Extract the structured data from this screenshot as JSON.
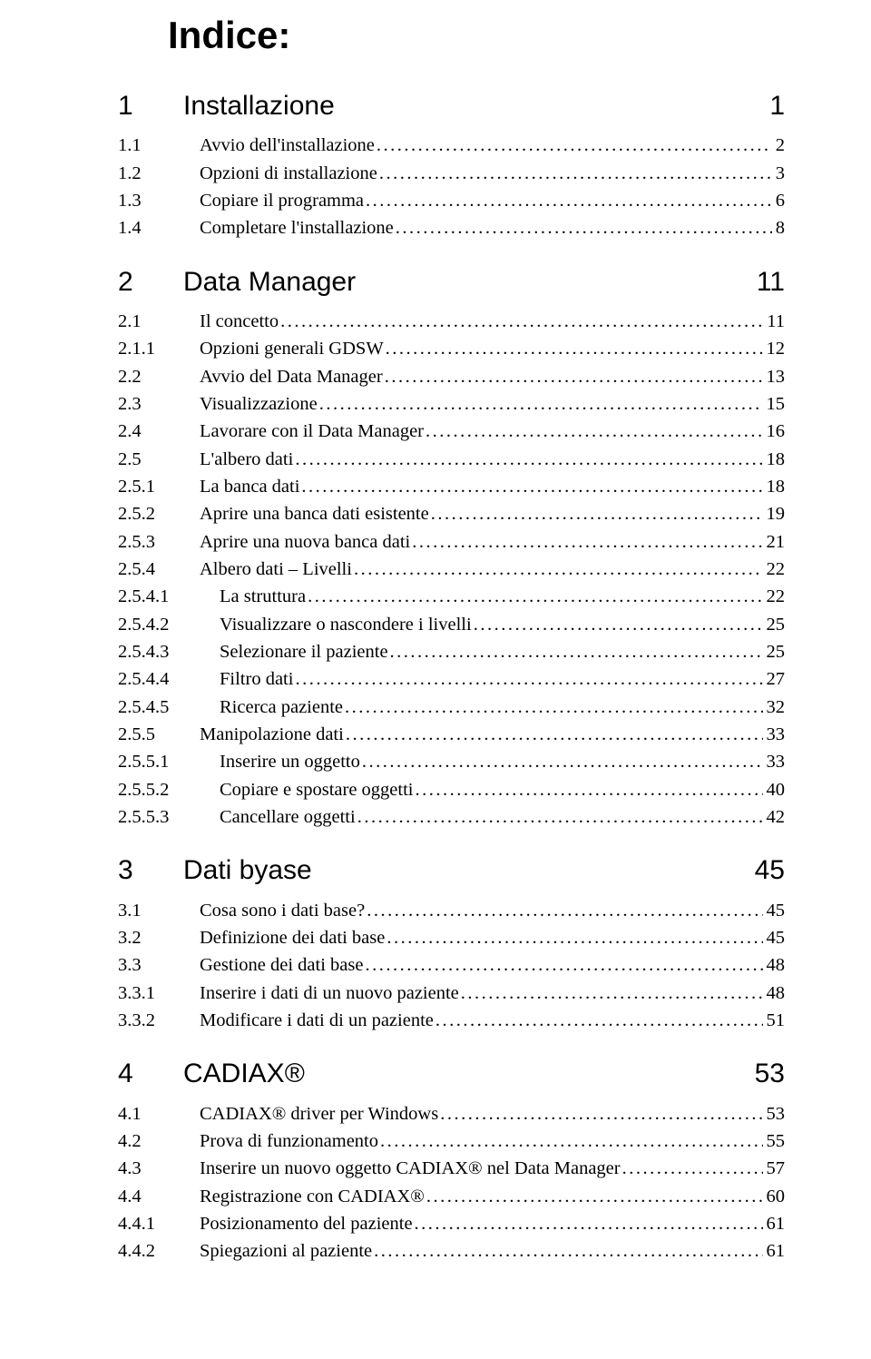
{
  "title": "Indice:",
  "sections": [
    {
      "chapter_num": "1",
      "chapter_title": "Installazione",
      "chapter_page": "1",
      "entries": [
        {
          "num": "1.1",
          "title": "Avvio dell'installazione",
          "page": "2",
          "level": 1
        },
        {
          "num": "1.2",
          "title": "Opzioni di installazione",
          "page": "3",
          "level": 1
        },
        {
          "num": "1.3",
          "title": "Copiare il programma",
          "page": "6",
          "level": 1
        },
        {
          "num": "1.4",
          "title": "Completare l'installazione",
          "page": "8",
          "level": 1
        }
      ]
    },
    {
      "chapter_num": "2",
      "chapter_title": "Data Manager",
      "chapter_page": "11",
      "entries": [
        {
          "num": "2.1",
          "title": "Il concetto",
          "page": "11",
          "level": 1
        },
        {
          "num": "2.1.1",
          "title": "Opzioni generali GDSW",
          "page": "12",
          "level": 1
        },
        {
          "num": "2.2",
          "title": "Avvio del Data Manager",
          "page": "13",
          "level": 1
        },
        {
          "num": "2.3",
          "title": "Visualizzazione",
          "page": "15",
          "level": 1
        },
        {
          "num": "2.4",
          "title": "Lavorare con il Data Manager",
          "page": "16",
          "level": 1
        },
        {
          "num": "2.5",
          "title": "L'albero dati",
          "page": "18",
          "level": 1
        },
        {
          "num": "2.5.1",
          "title": "La banca dati",
          "page": "18",
          "level": 1
        },
        {
          "num": "2.5.2",
          "title": "Aprire una banca dati esistente",
          "page": "19",
          "level": 1
        },
        {
          "num": "2.5.3",
          "title": "Aprire una nuova banca dati",
          "page": "21",
          "level": 1
        },
        {
          "num": "2.5.4",
          "title": "Albero dati – Livelli",
          "page": "22",
          "level": 1
        },
        {
          "num": "2.5.4.1",
          "title": "La struttura",
          "page": "22",
          "level": 2
        },
        {
          "num": "2.5.4.2",
          "title": "Visualizzare o nascondere i livelli",
          "page": "25",
          "level": 2
        },
        {
          "num": "2.5.4.3",
          "title": "Selezionare il paziente",
          "page": "25",
          "level": 2
        },
        {
          "num": "2.5.4.4",
          "title": "Filtro dati",
          "page": "27",
          "level": 2
        },
        {
          "num": "2.5.4.5",
          "title": "Ricerca paziente",
          "page": "32",
          "level": 2
        },
        {
          "num": "2.5.5",
          "title": "Manipolazione dati",
          "page": "33",
          "level": 1
        },
        {
          "num": "2.5.5.1",
          "title": "Inserire un oggetto",
          "page": "33",
          "level": 2
        },
        {
          "num": "2.5.5.2",
          "title": "Copiare e spostare oggetti",
          "page": "40",
          "level": 2
        },
        {
          "num": "2.5.5.3",
          "title": "Cancellare oggetti",
          "page": "42",
          "level": 2
        }
      ]
    },
    {
      "chapter_num": "3",
      "chapter_title": "Dati byase",
      "chapter_page": "45",
      "entries": [
        {
          "num": "3.1",
          "title": "Cosa sono i dati base?",
          "page": "45",
          "level": 1
        },
        {
          "num": "3.2",
          "title": "Definizione dei dati base",
          "page": "45",
          "level": 1
        },
        {
          "num": "3.3",
          "title": "Gestione dei dati base",
          "page": "48",
          "level": 1
        },
        {
          "num": "3.3.1",
          "title": "Inserire i dati di un nuovo paziente",
          "page": "48",
          "level": 1
        },
        {
          "num": "3.3.2",
          "title": "Modificare i dati di un paziente",
          "page": "51",
          "level": 1
        }
      ]
    },
    {
      "chapter_num": "4",
      "chapter_title": "CADIAX®",
      "chapter_page": "53",
      "entries": [
        {
          "num": "4.1",
          "title": "CADIAX® driver per Windows",
          "page": "53",
          "level": 1
        },
        {
          "num": "4.2",
          "title": "Prova di funzionamento",
          "page": "55",
          "level": 1
        },
        {
          "num": "4.3",
          "title": "Inserire un nuovo oggetto CADIAX® nel Data Manager",
          "page": "57",
          "level": 1
        },
        {
          "num": "4.4",
          "title": "Registrazione con CADIAX®",
          "page": "60",
          "level": 1
        },
        {
          "num": "4.4.1",
          "title": "Posizionamento del paziente",
          "page": "61",
          "level": 1
        },
        {
          "num": "4.4.2",
          "title": "Spiegazioni al paziente",
          "page": "61",
          "level": 1
        }
      ]
    }
  ]
}
